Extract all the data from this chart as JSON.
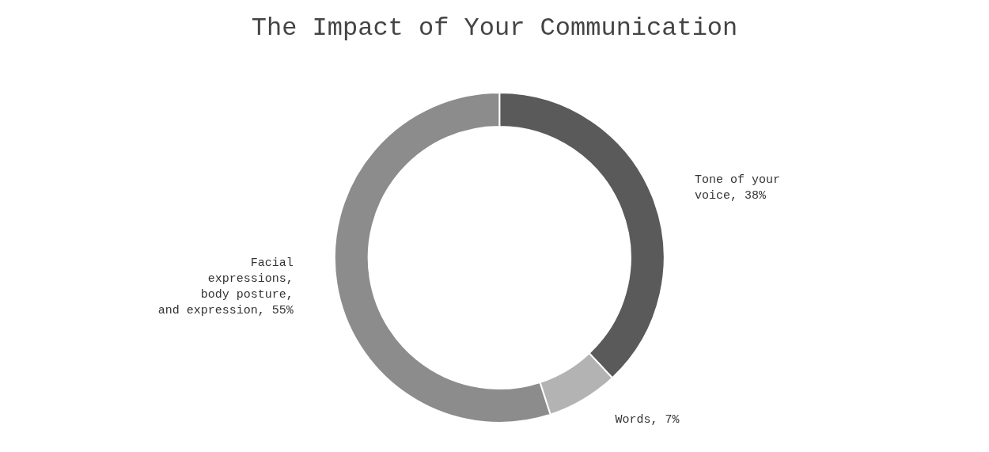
{
  "chart_data": {
    "type": "donut",
    "title": "The Impact of Your Communication",
    "categories": [
      "Tone of your voice",
      "Words",
      "Facial expressions, body posture, and expression"
    ],
    "values": [
      38,
      7,
      55
    ],
    "colors": [
      "#5a5a5a",
      "#b3b3b3",
      "#8c8c8c"
    ],
    "value_labels": [
      "38%",
      "7%",
      "55%"
    ],
    "legend": false
  }
}
